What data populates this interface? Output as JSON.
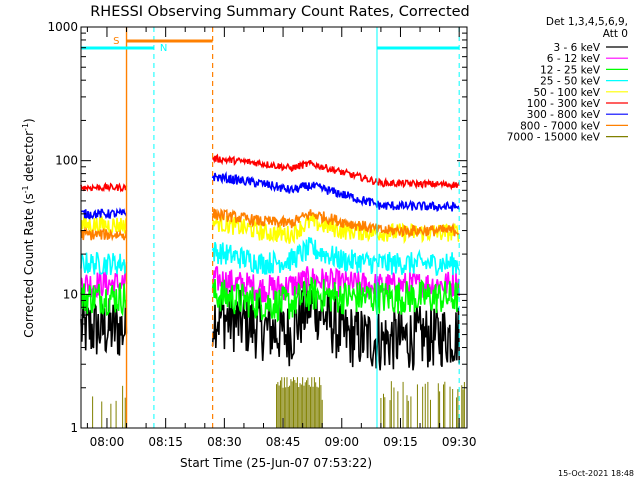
{
  "chart_data": {
    "type": "line",
    "title": "RHESSI Observing Summary Count Rates, Corrected",
    "xlabel": "Start Time (25-Jun-07 07:53:22)",
    "ylabel_main": "Corrected Count Rate (s",
    "ylabel_sup1": "-1",
    "ylabel_mid": " detector",
    "ylabel_sup2": "-1",
    "ylabel_end": ")",
    "yscale": "log",
    "ylim": [
      1,
      1000
    ],
    "xlim": [
      "07:53:22",
      "09:32:00"
    ],
    "x_ticks": [
      "08:00",
      "08:15",
      "08:30",
      "08:45",
      "09:00",
      "09:15",
      "09:30"
    ],
    "y_ticks": [
      "1",
      "10",
      "100",
      "1000"
    ],
    "legend": {
      "header1": "Det 1,3,4,5,6,9,",
      "header2": "Att 0",
      "placement": "top-right"
    },
    "series": [
      {
        "name": "3 - 6 keV",
        "color": "#000000",
        "pre": 5.5,
        "post": [
          7.0,
          5.5,
          5.0,
          8.5,
          5.0,
          4.5,
          5.0
        ],
        "noise": 0.28
      },
      {
        "name": "6 - 12 keV",
        "color": "#ff00ff",
        "pre": 12,
        "post": [
          13,
          11,
          11.5,
          13,
          12,
          11.5,
          12
        ],
        "noise": 0.12
      },
      {
        "name": "12 - 25 keV",
        "color": "#00ff00",
        "pre": 9.5,
        "post": [
          10,
          8.5,
          8.5,
          10,
          9.5,
          9.5,
          9.5
        ],
        "noise": 0.15
      },
      {
        "name": "25 - 50 keV",
        "color": "#00ffff",
        "pre": 17,
        "post": [
          21,
          17,
          18,
          22,
          18,
          17,
          17
        ],
        "noise": 0.1
      },
      {
        "name": "50 - 100 keV",
        "color": "#ffff00",
        "pre": 33,
        "post": [
          35,
          29,
          28,
          35,
          30,
          29,
          29
        ],
        "noise": 0.08
      },
      {
        "name": "100 - 300 keV",
        "color": "#ff0000",
        "pre": 63,
        "post": [
          104,
          95,
          88,
          95,
          82,
          68,
          66
        ],
        "noise": 0.03
      },
      {
        "name": "300 - 800 keV",
        "color": "#0000ff",
        "pre": 40,
        "post": [
          76,
          67,
          60,
          65,
          56,
          46,
          45
        ],
        "noise": 0.04
      },
      {
        "name": "800 - 7000 keV",
        "color": "#ff8000",
        "pre": 28,
        "post": [
          40,
          35,
          34,
          40,
          35,
          30,
          30
        ],
        "noise": 0.05
      },
      {
        "name": "7000 - 15000 keV",
        "color": "#808000",
        "pre": 1.5,
        "post": [
          1.5,
          1.5,
          1.5,
          2.0,
          1.5,
          1.5,
          1.5
        ],
        "noise": 0.0
      }
    ],
    "data_gap": [
      "08:05:00",
      "08:27:00"
    ],
    "post_times": [
      "08:27:00",
      "08:40:00",
      "08:47:00",
      "08:52:00",
      "09:00:00",
      "09:10:00",
      "09:30:00"
    ],
    "markers": {
      "saa_label": "S",
      "night_label": "N",
      "saa_bar": [
        "08:05:00",
        "08:27:00"
      ],
      "night_bars": [
        [
          "07:53:22",
          "08:12:00"
        ],
        [
          "09:09:00",
          "09:30:00"
        ]
      ],
      "orange_lines": [
        "08:05:00",
        "08:27:00"
      ],
      "cyan_solid": [
        "07:53:22",
        "09:09:00"
      ],
      "cyan_dashed": [
        "08:12:00",
        "09:30:00"
      ]
    }
  },
  "footer": {
    "date": "15-Oct-2021 18:48"
  }
}
